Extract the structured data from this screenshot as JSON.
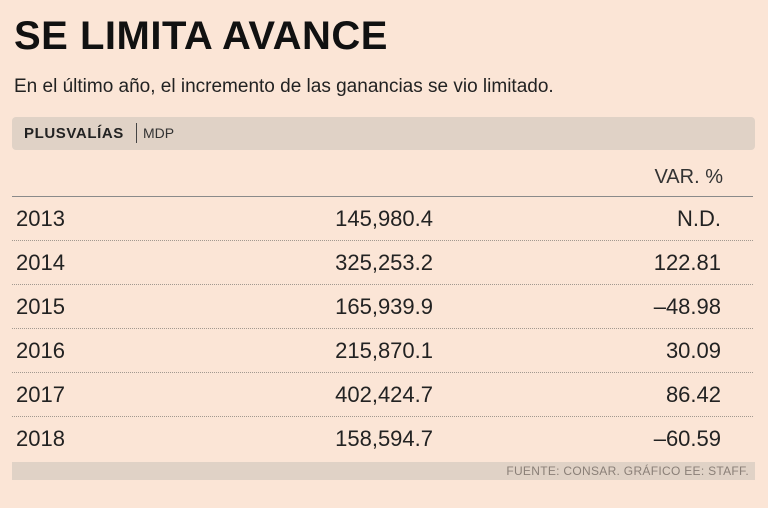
{
  "header": {
    "title": "SE LIMITA AVANCE",
    "subtitle": "En el último año, el incremento de las ganancias se vio limitado."
  },
  "band": {
    "label": "PLUSVALÍAS",
    "unit": "MDP"
  },
  "chart_data": {
    "type": "table",
    "title": "SE LIMITA AVANCE",
    "subtitle": "En el último año, el incremento de las ganancias se vio limitado.",
    "columns": [
      "",
      "",
      "VAR. %"
    ],
    "rows": [
      {
        "year": "2013",
        "value": "145,980.4",
        "var": "N.D."
      },
      {
        "year": "2014",
        "value": "325,253.2",
        "var": "122.81"
      },
      {
        "year": "2015",
        "value": "165,939.9",
        "var": "–48.98"
      },
      {
        "year": "2016",
        "value": "215,870.1",
        "var": "30.09"
      },
      {
        "year": "2017",
        "value": "402,424.7",
        "var": "86.42"
      },
      {
        "year": "2018",
        "value": "158,594.7",
        "var": "–60.59"
      }
    ]
  },
  "footer": {
    "source": "FUENTE: CONSAR. GRÁFICO EE: STAFF."
  }
}
